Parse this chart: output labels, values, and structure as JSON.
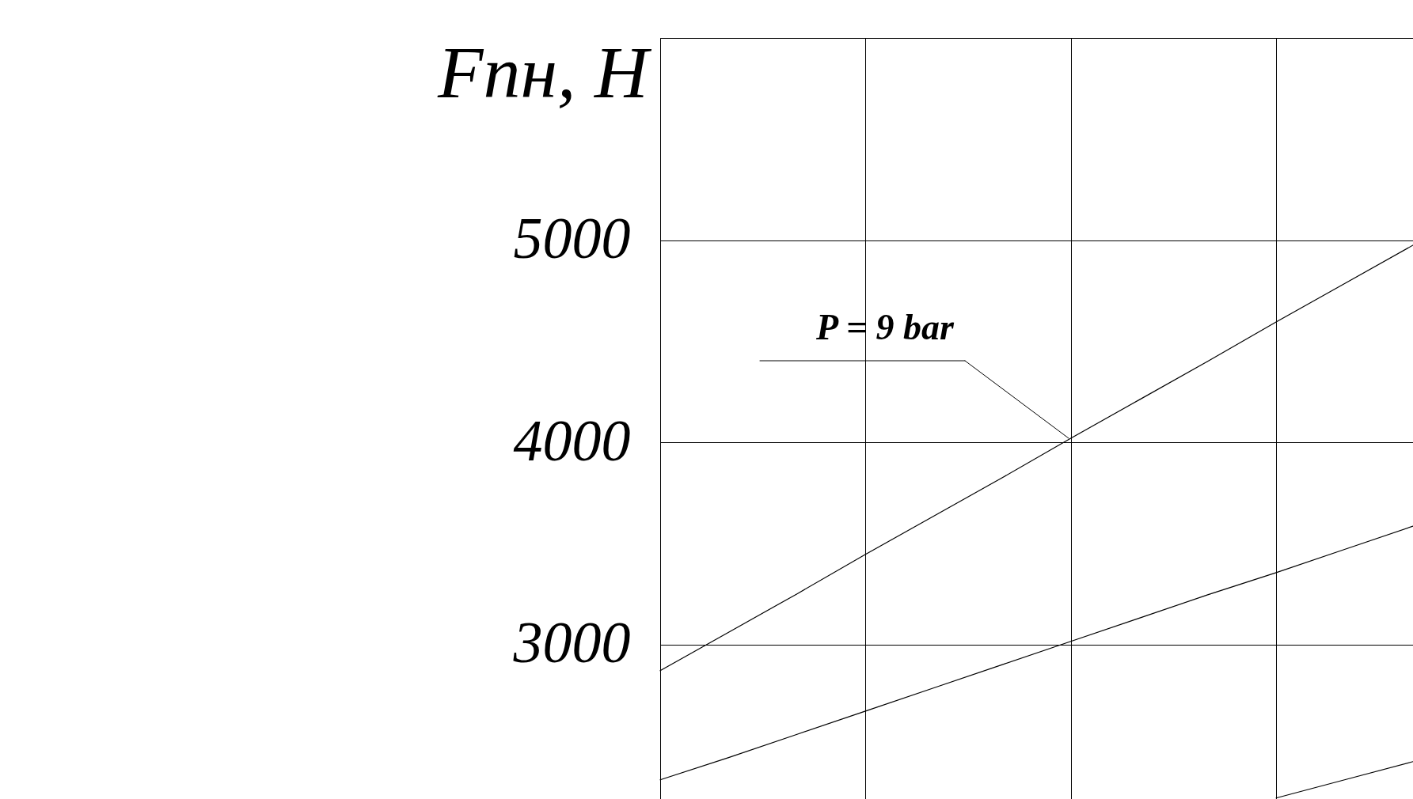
{
  "chart_data": {
    "type": "line",
    "ylabel": "Fпн, Н",
    "categories": [
      null,
      null,
      null,
      null,
      null,
      null,
      null,
      null,
      null,
      null,
      null,
      null
    ],
    "ylim": [
      2235,
      6000
    ],
    "yticks": [
      3000,
      4000,
      5000
    ],
    "grid": true,
    "tick_labels": "y",
    "marker": "none",
    "line_style": "solid",
    "series": [
      {
        "color": "#000000",
        "values": [
          2870,
          3060,
          3250,
          3445,
          3635,
          3825,
          4020,
          4210,
          4400,
          4595,
          4785,
          4975
        ]
      },
      {
        "color": "#000000",
        "values": [
          2330,
          2440,
          2555,
          2670,
          2785,
          2900,
          3015,
          3130,
          3245,
          3355,
          3470,
          3585
        ]
      },
      {
        "color": "#000000",
        "values": [
          null,
          null,
          null,
          null,
          null,
          null,
          null,
          null,
          null,
          2240,
          2330,
          2420
        ]
      }
    ],
    "annotations": [
      "P = 9 bar"
    ]
  }
}
